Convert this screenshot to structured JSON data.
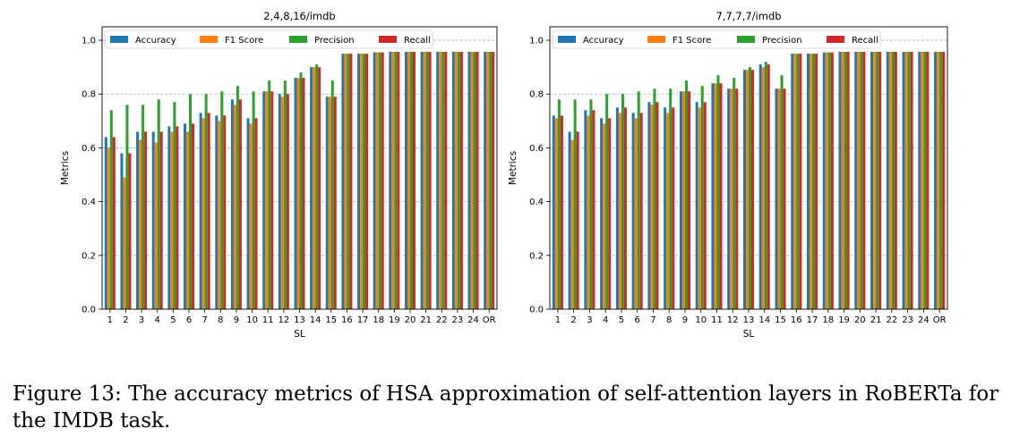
{
  "caption": "Figure 13: The accuracy metrics of HSA approximation of self-attention layers in RoBERTa for the IMDB task.",
  "colors": {
    "Accuracy": "#1f77b4",
    "F1 Score": "#ff7f0e",
    "Precision": "#2ca02c",
    "Recall": "#d62728"
  },
  "chart_data": [
    {
      "type": "bar",
      "title": "2,4,8,16/imdb",
      "xlabel": "SL",
      "ylabel": "Metrics",
      "ylim": [
        0,
        1.05
      ],
      "yticks": [
        "0.0",
        "0.2",
        "0.4",
        "0.6",
        "0.8",
        "1.0"
      ],
      "grid": "y-dashed",
      "legend_position": "top",
      "categories": [
        "1",
        "2",
        "3",
        "4",
        "5",
        "6",
        "7",
        "8",
        "9",
        "10",
        "11",
        "12",
        "13",
        "14",
        "15",
        "16",
        "17",
        "18",
        "19",
        "20",
        "21",
        "22",
        "23",
        "24",
        "OR"
      ],
      "series": [
        {
          "name": "Accuracy",
          "values": [
            0.64,
            0.58,
            0.66,
            0.66,
            0.68,
            0.69,
            0.73,
            0.72,
            0.78,
            0.71,
            0.81,
            0.8,
            0.86,
            0.9,
            0.79,
            0.95,
            0.95,
            0.955,
            0.957,
            0.957,
            0.957,
            0.957,
            0.957,
            0.957,
            0.957
          ]
        },
        {
          "name": "F1 Score",
          "values": [
            0.6,
            0.49,
            0.63,
            0.62,
            0.66,
            0.66,
            0.71,
            0.7,
            0.76,
            0.69,
            0.81,
            0.79,
            0.86,
            0.9,
            0.79,
            0.95,
            0.95,
            0.955,
            0.957,
            0.957,
            0.957,
            0.957,
            0.957,
            0.957,
            0.957
          ]
        },
        {
          "name": "Precision",
          "values": [
            0.74,
            0.76,
            0.76,
            0.78,
            0.77,
            0.8,
            0.8,
            0.81,
            0.83,
            0.81,
            0.85,
            0.85,
            0.88,
            0.91,
            0.85,
            0.95,
            0.95,
            0.955,
            0.957,
            0.957,
            0.957,
            0.957,
            0.957,
            0.957,
            0.957
          ]
        },
        {
          "name": "Recall",
          "values": [
            0.64,
            0.58,
            0.66,
            0.66,
            0.68,
            0.69,
            0.73,
            0.72,
            0.78,
            0.71,
            0.81,
            0.8,
            0.86,
            0.9,
            0.79,
            0.95,
            0.95,
            0.955,
            0.957,
            0.957,
            0.957,
            0.957,
            0.957,
            0.957,
            0.957
          ]
        }
      ]
    },
    {
      "type": "bar",
      "title": "7,7,7,7/imdb",
      "xlabel": "SL",
      "ylabel": "Metrics",
      "ylim": [
        0,
        1.05
      ],
      "yticks": [
        "0.0",
        "0.2",
        "0.4",
        "0.6",
        "0.8",
        "1.0"
      ],
      "grid": "y-dashed",
      "legend_position": "top",
      "categories": [
        "1",
        "2",
        "3",
        "4",
        "5",
        "6",
        "7",
        "8",
        "9",
        "10",
        "11",
        "12",
        "13",
        "14",
        "15",
        "16",
        "17",
        "18",
        "19",
        "20",
        "21",
        "22",
        "23",
        "24",
        "OR"
      ],
      "series": [
        {
          "name": "Accuracy",
          "values": [
            0.72,
            0.66,
            0.74,
            0.71,
            0.75,
            0.73,
            0.77,
            0.75,
            0.81,
            0.77,
            0.84,
            0.82,
            0.89,
            0.91,
            0.82,
            0.95,
            0.95,
            0.955,
            0.957,
            0.957,
            0.957,
            0.957,
            0.957,
            0.957,
            0.957
          ]
        },
        {
          "name": "F1 Score",
          "values": [
            0.71,
            0.63,
            0.72,
            0.69,
            0.73,
            0.71,
            0.76,
            0.73,
            0.81,
            0.75,
            0.84,
            0.82,
            0.89,
            0.9,
            0.82,
            0.95,
            0.95,
            0.955,
            0.957,
            0.957,
            0.957,
            0.957,
            0.957,
            0.957,
            0.957
          ]
        },
        {
          "name": "Precision",
          "values": [
            0.78,
            0.78,
            0.78,
            0.8,
            0.8,
            0.81,
            0.82,
            0.82,
            0.85,
            0.83,
            0.87,
            0.86,
            0.9,
            0.92,
            0.87,
            0.95,
            0.95,
            0.955,
            0.957,
            0.957,
            0.957,
            0.957,
            0.957,
            0.957,
            0.957
          ]
        },
        {
          "name": "Recall",
          "values": [
            0.72,
            0.66,
            0.74,
            0.71,
            0.75,
            0.73,
            0.77,
            0.75,
            0.81,
            0.77,
            0.84,
            0.82,
            0.89,
            0.91,
            0.82,
            0.95,
            0.95,
            0.955,
            0.957,
            0.957,
            0.957,
            0.957,
            0.957,
            0.957,
            0.957
          ]
        }
      ]
    }
  ]
}
